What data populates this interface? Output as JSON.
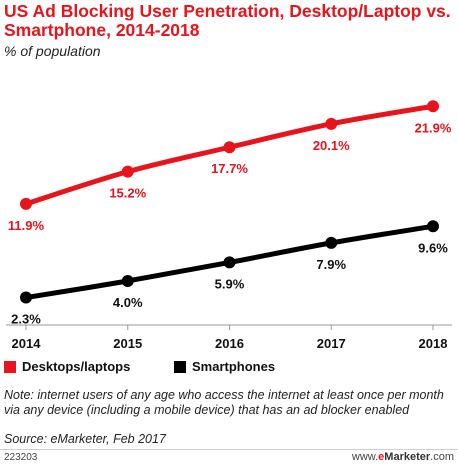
{
  "header": {
    "title": "US Ad Blocking User Penetration, Desktop/Laptop vs. Smartphone, 2014-2018",
    "subtitle": "% of population"
  },
  "chart_data": {
    "type": "line",
    "title": "US Ad Blocking User Penetration, Desktop/Laptop vs. Smartphone, 2014-2018",
    "subtitle": "% of population",
    "categories": [
      "2014",
      "2015",
      "2016",
      "2017",
      "2018"
    ],
    "ylim": [
      0,
      25
    ],
    "grid": false,
    "legend_placement": "bottom-left",
    "series": [
      {
        "name": "Desktops/laptops",
        "color": "#e8141c",
        "values": [
          11.9,
          15.2,
          17.7,
          20.1,
          21.9
        ],
        "labels": [
          "11.9%",
          "15.2%",
          "17.7%",
          "20.1%",
          "21.9%"
        ]
      },
      {
        "name": "Smartphones",
        "color": "#000000",
        "values": [
          2.3,
          4.0,
          5.9,
          7.9,
          9.6
        ],
        "labels": [
          "2.3%",
          "4.0%",
          "5.9%",
          "7.9%",
          "9.6%"
        ]
      }
    ]
  },
  "footer": {
    "note": "Note: internet users of any age who access the internet at least once per month via any device (including a mobile device) that has an ad blocker enabled",
    "source": "Source: eMarketer, Feb 2017",
    "chart_id": "223203",
    "brand_prefix": "www.",
    "brand_e": "e",
    "brand_rest": "Marketer",
    "brand_suffix": ".com"
  }
}
